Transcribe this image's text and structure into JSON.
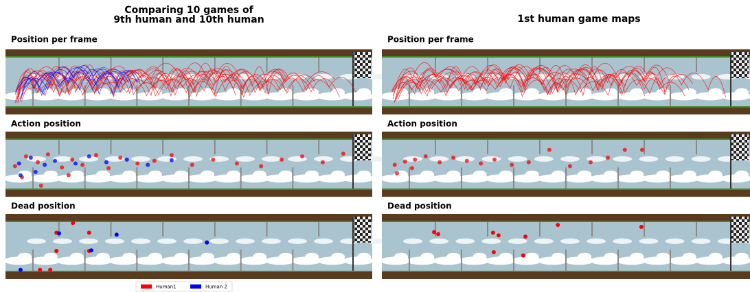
{
  "left": {
    "title_lines": [
      "Comparing 10 games of",
      "9th human and 10th human"
    ],
    "panels": [
      {
        "label": "Position per frame"
      },
      {
        "label": "Action position",
        "series": [
          {
            "name": "Human1",
            "color": "#ff0000",
            "x": [
              2.6,
              5.6,
              8.8,
              11.6,
              15.4,
              18.2,
              21,
              24.7,
              28.1,
              31.3,
              36,
              40.6,
              45.3,
              50.9,
              56.6,
              63.1,
              69.7,
              75.3,
              80.9,
              86.5,
              92.1,
              4.5,
              9.7,
              17.2
            ],
            "y": [
              53,
              38,
              47,
              35,
              55,
              43,
              51,
              36,
              56,
              40,
              49,
              45,
              36,
              51,
              43,
              49,
              53,
              43,
              38,
              47,
              34,
              70,
              83,
              67
            ]
          },
          {
            "name": "Human 2",
            "color": "#0000ff",
            "x": [
              3.7,
              6.9,
              10.7,
              13.5,
              19.1,
              22.8,
              27.5,
              33.1,
              38.8,
              45.3,
              4.1,
              8.2
            ],
            "y": [
              49,
              40,
              51,
              45,
              49,
              38,
              47,
              43,
              51,
              44,
              67,
              62
            ]
          }
        ]
      },
      {
        "label": "Dead position",
        "series": [
          {
            "name": "Human1",
            "color": "#ff0000",
            "x": [
              13.9,
              18.4,
              22.8,
              13.9,
              22.8,
              9.4,
              12.2
            ],
            "y": [
              29,
              14,
              29,
              57,
              57,
              86,
              86
            ]
          },
          {
            "name": "Human 2",
            "color": "#0000ff",
            "x": [
              14.6,
              30.3,
              54.9,
              23.4,
              4.1
            ],
            "y": [
              30,
              32,
              44,
              56,
              86
            ]
          }
        ]
      }
    ]
  },
  "right": {
    "title_lines": [
      "1st human game maps"
    ],
    "panels": [
      {
        "label": "Position per frame"
      },
      {
        "label": "Action position",
        "series": [
          {
            "name": "Human1",
            "color": "#ff0000",
            "x": [
              3.5,
              6.3,
              9,
              11.9,
              15.7,
              19.4,
              23.1,
              26.9,
              30.6,
              35.3,
              39.9,
              45.5,
              51.1,
              56.7,
              61.4,
              66,
              70.7,
              4.1,
              8.2
            ],
            "y": [
              51,
              46,
              43,
              38,
              47,
              40,
              45,
              49,
              43,
              51,
              47,
              28,
              53,
              47,
              40,
              28,
              28,
              64,
              56
            ]
          }
        ]
      },
      {
        "label": "Dead position",
        "series": [
          {
            "name": "Human1",
            "color": "#ff0000",
            "x": [
              14.2,
              15.3,
              30.2,
              31.7,
              39,
              47.8,
              70.5,
              30.4,
              38.4
            ],
            "y": [
              28,
              31,
              29,
              33,
              35,
              17,
              20,
              59,
              64
            ]
          }
        ]
      }
    ]
  }
}
